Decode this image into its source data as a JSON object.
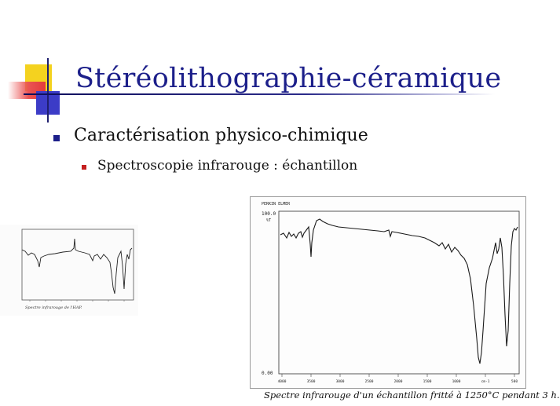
{
  "slide": {
    "title": "Stéréolithographie-céramique",
    "bullet1": "Caractérisation physico-chimique",
    "bullet2": "Spectroscopie infrarouge : échantillon",
    "colors": {
      "title": "#1c1f8a",
      "bullet1": "#1c1f8a",
      "bullet2": "#c41f1f"
    }
  },
  "small_figure": {
    "caption": "Spectre infrarouge de l'HAP."
  },
  "big_figure": {
    "header": "PERKIN ELMER",
    "y_top_label": "100.0",
    "y_top_unit": "%T",
    "y_bottom_label": "0.00",
    "x_ticks": [
      "4000",
      "3500",
      "3000",
      "2500",
      "2000",
      "1500",
      "1000",
      "cm-1",
      "500"
    ],
    "caption": "Spectre infrarouge d'un échantillon fritté à 1250°C pendant 3 h."
  }
}
